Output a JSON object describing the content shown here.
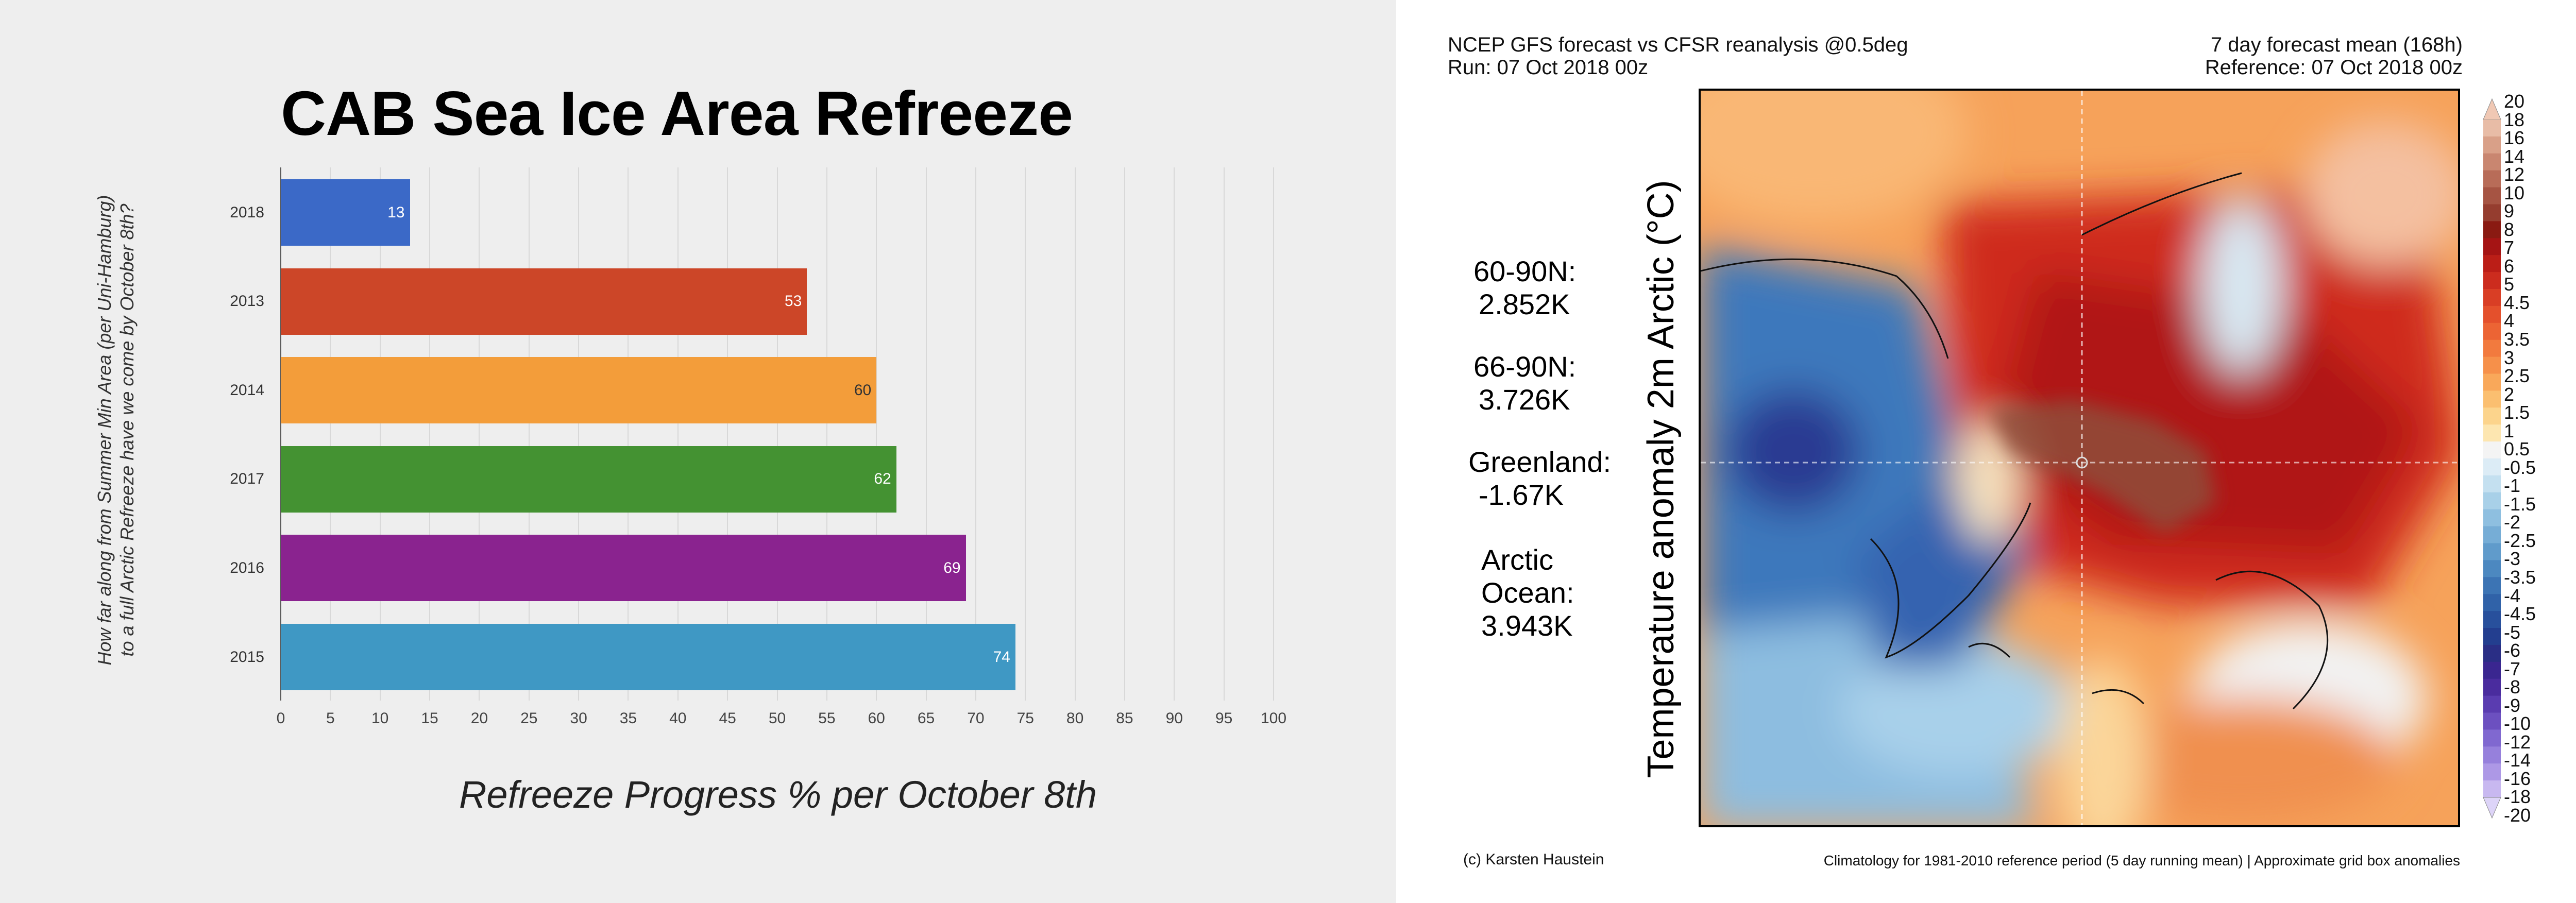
{
  "chart_data": [
    {
      "type": "bar",
      "orientation": "horizontal",
      "title": "CAB Sea Ice Area Refreeze",
      "xlabel": "Refreeze Progress % per October 8th",
      "ylabel_lines": [
        "How far along from Summer Min Area (per Uni-Hamburg)",
        "to a full Arctic Refreeze have we come by October 8th?"
      ],
      "categories": [
        "2018",
        "2013",
        "2014",
        "2017",
        "2016",
        "2015"
      ],
      "values": [
        13,
        53,
        60,
        62,
        69,
        74
      ],
      "colors": [
        "#3b69c7",
        "#cc4628",
        "#f39d3a",
        "#449232",
        "#8a238f",
        "#3f98c4"
      ],
      "label_colors": [
        "#ffffff",
        "#ffffff",
        "#333333",
        "#ffffff",
        "#ffffff",
        "#ffffff"
      ],
      "xlim": [
        0,
        100
      ],
      "xticks": [
        0,
        5,
        10,
        15,
        20,
        25,
        30,
        35,
        40,
        45,
        50,
        55,
        60,
        65,
        70,
        75,
        80,
        85,
        90,
        95,
        100
      ],
      "grid": true
    },
    {
      "type": "heatmap",
      "header_left": [
        "NCEP GFS forecast vs CFSR reanalysis @0.5deg",
        "Run: 07 Oct 2018 00z"
      ],
      "header_right": [
        "7 day forecast mean (168h)",
        "Reference: 07 Oct 2018 00z"
      ],
      "ylabel": "Temperature anomaly 2m Arctic (°C)",
      "stats": [
        {
          "label": "60-90N:",
          "value": "2.852K"
        },
        {
          "label": "66-90N:",
          "value": "3.726K"
        },
        {
          "label": "Greenland:",
          "value": "-1.67K"
        },
        {
          "label": "Arctic Ocean:",
          "value": "3.943K"
        }
      ],
      "colorbar_labels": [
        "20",
        "18",
        "16",
        "14",
        "12",
        "10",
        "9",
        "8",
        "7",
        "6",
        "5",
        "4.5",
        "4",
        "3.5",
        "3",
        "2.5",
        "2",
        "1.5",
        "1",
        "0.5",
        "-0.5",
        "-1",
        "-1.5",
        "-2",
        "-2.5",
        "-3",
        "-3.5",
        "-4",
        "-4.5",
        "-5",
        "-6",
        "-7",
        "-8",
        "-9",
        "-10",
        "-12",
        "-14",
        "-16",
        "-18",
        "-20"
      ],
      "colorbar_colors": [
        "#e8bca6",
        "#d9a088",
        "#c98670",
        "#b86c58",
        "#a65443",
        "#953d2f",
        "#8a1a12",
        "#a51414",
        "#bb1e17",
        "#cc2c1e",
        "#d93e25",
        "#e4502c",
        "#ec6434",
        "#f27a3e",
        "#f6904a",
        "#f9a85a",
        "#fbbf70",
        "#fcd48c",
        "#fde6b0",
        "#f4f4f4",
        "#dcecf6",
        "#c4e0f0",
        "#a8d0e8",
        "#8ebfe0",
        "#76add6",
        "#609bcb",
        "#4c88c0",
        "#3c74b4",
        "#3062a8",
        "#28509c",
        "#233e8f",
        "#2a2e85",
        "#3a2690",
        "#4a2c9e",
        "#5a3cb0",
        "#6c50c0",
        "#8068d0",
        "#9680dc",
        "#ad98e6",
        "#c8b8f0"
      ],
      "footer_left": "(c) Karsten Haustein",
      "footer_right": "Climatology for 1981-2010 reference period (5 day running mean) | Approximate grid box anomalies"
    }
  ]
}
